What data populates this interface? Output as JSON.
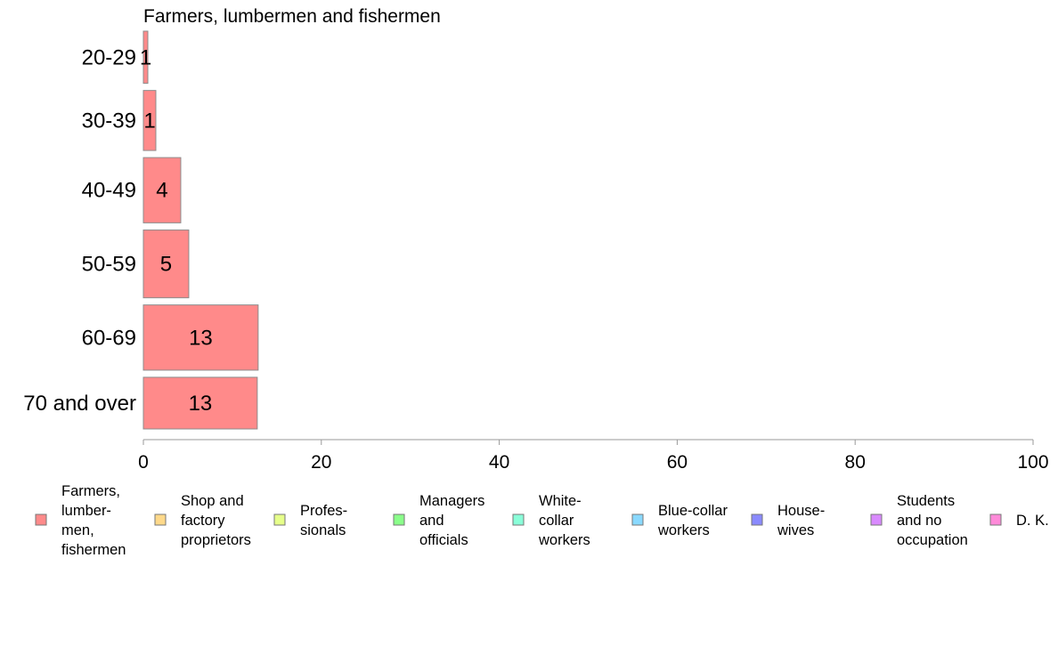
{
  "chart_data": {
    "type": "bar",
    "orientation": "horizontal",
    "title": "Farmers, lumbermen and fishermen",
    "categories": [
      "20-29",
      "30-39",
      "40-49",
      "50-59",
      "60-69",
      "70 and over"
    ],
    "values": [
      0.5,
      1.4,
      4.2,
      5.1,
      12.9,
      12.8
    ],
    "data_labels": [
      "1",
      "1",
      "4",
      "5",
      "13",
      "13"
    ],
    "bar_weights": [
      1.0,
      1.15,
      1.25,
      1.3,
      1.25,
      0.99
    ],
    "xlim": [
      0,
      100
    ],
    "xticks": [
      "0",
      "20",
      "40",
      "60",
      "80",
      "100"
    ],
    "xlabel": "",
    "ylabel": "",
    "grid": false,
    "legend_position": "bottom",
    "bar_color": "#ff8a8a",
    "legend": [
      {
        "lines": [
          "Farmers,",
          "lumber-",
          "men,",
          "fishermen"
        ],
        "color": "#ff8a8a"
      },
      {
        "lines": [
          "Shop and",
          "factory",
          "proprietors"
        ],
        "color": "#ffd98a"
      },
      {
        "lines": [
          "Profes-",
          "sionals"
        ],
        "color": "#e6ff8a"
      },
      {
        "lines": [
          "Managers",
          "and",
          "officials"
        ],
        "color": "#8aff8a"
      },
      {
        "lines": [
          "White-",
          "collar",
          "workers"
        ],
        "color": "#8affd9"
      },
      {
        "lines": [
          "Blue-collar",
          "workers"
        ],
        "color": "#8ad9ff"
      },
      {
        "lines": [
          "House-",
          "wives"
        ],
        "color": "#8a8aff"
      },
      {
        "lines": [
          "Students",
          "and no",
          "occupation"
        ],
        "color": "#d98aff"
      },
      {
        "lines": [
          "D. K."
        ],
        "color": "#ff8ad9"
      }
    ]
  }
}
